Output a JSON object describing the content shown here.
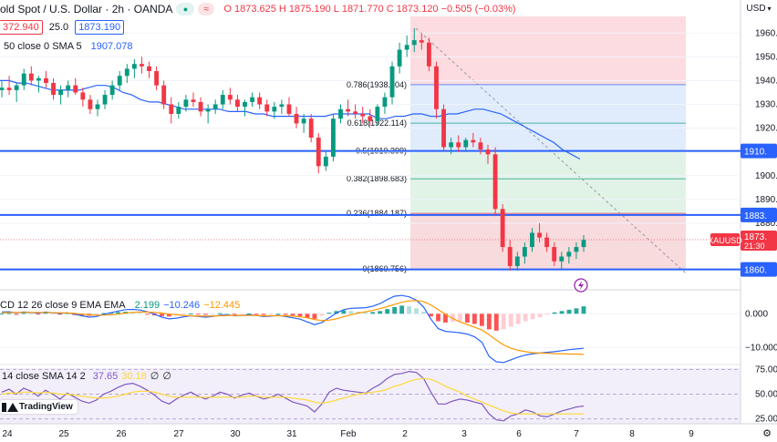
{
  "header": {
    "symbol": "old Spot / U.S. Dollar · 2h · OANDA",
    "ohlc": {
      "o_label": "O",
      "o": "1873.625",
      "h_label": "H",
      "h": "1875.190",
      "l_label": "L",
      "l": "1871.770",
      "c_label": "C",
      "c": "1873.120",
      "change": "−0.505 (−0.03%)"
    },
    "sell_price": "372.940",
    "spread": "25.0",
    "buy_price": "1873.190",
    "sma_label": "50 close 0 SMA 5",
    "sma_value": "1907.078",
    "currency": "USD"
  },
  "macd_legend": {
    "label": "CD 12 26 close 9 EMA EMA",
    "v1": "2.199",
    "v2": "−10.246",
    "v3": "−12.445"
  },
  "rsi_legend": {
    "label": "14 close SMA 14 2",
    "v1": "37.65",
    "v2": "30.18",
    "v3": "∅",
    "v4": "∅"
  },
  "brand": {
    "logo_text": "TradingView"
  },
  "colors": {
    "up": "#089981",
    "down": "#f23645",
    "level": "#2962ff",
    "sma": "#2962ff",
    "macd": "#2962ff",
    "signal": "#ff9800",
    "rsi": "#7e57c2",
    "rsi_ma": "#fdd835"
  },
  "chart_data": {
    "type": "candlestick",
    "price_axis": {
      "ylim": [
        1857,
        1967
      ],
      "ticks": [
        1960,
        1950,
        1940,
        1930,
        1920,
        1910,
        1900,
        1890,
        1880
      ],
      "tick_labels": [
        "1960.000",
        "1950.000",
        "1940.000",
        "1930.000",
        "1920.000",
        "1910.000",
        "1900.000",
        "1890.000",
        "1880.000"
      ]
    },
    "x_axis": {
      "tick_labels": [
        "24",
        "25",
        "26",
        "27",
        "30",
        "31",
        "Feb",
        "2",
        "3",
        "6",
        "7",
        "8",
        "9"
      ]
    },
    "candles": [
      [
        1936,
        1940,
        1933,
        1937
      ],
      [
        1937,
        1942,
        1934,
        1936
      ],
      [
        1936,
        1939,
        1931,
        1938
      ],
      [
        1938,
        1945,
        1936,
        1943
      ],
      [
        1943,
        1946,
        1938,
        1940
      ],
      [
        1940,
        1942,
        1935,
        1941
      ],
      [
        1941,
        1944,
        1937,
        1939
      ],
      [
        1939,
        1941,
        1932,
        1934
      ],
      [
        1934,
        1938,
        1930,
        1936
      ],
      [
        1936,
        1940,
        1933,
        1938
      ],
      [
        1938,
        1941,
        1934,
        1935
      ],
      [
        1935,
        1937,
        1929,
        1932
      ],
      [
        1932,
        1934,
        1926,
        1928
      ],
      [
        1928,
        1932,
        1925,
        1930
      ],
      [
        1930,
        1936,
        1928,
        1934
      ],
      [
        1934,
        1940,
        1932,
        1938
      ],
      [
        1938,
        1944,
        1936,
        1942
      ],
      [
        1942,
        1947,
        1939,
        1945
      ],
      [
        1945,
        1949,
        1941,
        1947
      ],
      [
        1947,
        1950,
        1943,
        1946
      ],
      [
        1946,
        1948,
        1941,
        1944
      ],
      [
        1944,
        1946,
        1936,
        1938
      ],
      [
        1938,
        1940,
        1928,
        1930
      ],
      [
        1930,
        1933,
        1922,
        1926
      ],
      [
        1926,
        1931,
        1924,
        1929
      ],
      [
        1929,
        1934,
        1927,
        1932
      ],
      [
        1932,
        1935,
        1929,
        1931
      ],
      [
        1931,
        1933,
        1925,
        1927
      ],
      [
        1927,
        1930,
        1922,
        1928
      ],
      [
        1928,
        1932,
        1926,
        1930
      ],
      [
        1930,
        1936,
        1928,
        1934
      ],
      [
        1934,
        1937,
        1930,
        1932
      ],
      [
        1932,
        1934,
        1927,
        1929
      ],
      [
        1929,
        1932,
        1925,
        1931
      ],
      [
        1931,
        1935,
        1929,
        1933
      ],
      [
        1933,
        1935,
        1928,
        1930
      ],
      [
        1930,
        1932,
        1925,
        1927
      ],
      [
        1927,
        1931,
        1924,
        1929
      ],
      [
        1929,
        1932,
        1926,
        1930
      ],
      [
        1930,
        1933,
        1925,
        1926
      ],
      [
        1926,
        1929,
        1920,
        1922
      ],
      [
        1922,
        1926,
        1918,
        1924
      ],
      [
        1924,
        1926,
        1914,
        1916
      ],
      [
        1916,
        1918,
        1901,
        1904
      ],
      [
        1904,
        1910,
        1902,
        1908
      ],
      [
        1908,
        1926,
        1906,
        1924
      ],
      [
        1924,
        1930,
        1922,
        1928
      ],
      [
        1928,
        1932,
        1925,
        1927
      ],
      [
        1927,
        1930,
        1924,
        1926
      ],
      [
        1926,
        1929,
        1922,
        1925
      ],
      [
        1925,
        1928,
        1921,
        1923
      ],
      [
        1923,
        1930,
        1921,
        1929
      ],
      [
        1929,
        1935,
        1926,
        1933
      ],
      [
        1933,
        1948,
        1930,
        1946
      ],
      [
        1946,
        1956,
        1943,
        1953
      ],
      [
        1953,
        1959,
        1950,
        1955
      ],
      [
        1955,
        1962,
        1952,
        1957
      ],
      [
        1957,
        1960,
        1953,
        1956
      ],
      [
        1956,
        1958,
        1944,
        1946
      ],
      [
        1946,
        1948,
        1924,
        1928
      ],
      [
        1928,
        1930,
        1910,
        1912
      ],
      [
        1912,
        1916,
        1909,
        1914
      ],
      [
        1914,
        1917,
        1910,
        1912
      ],
      [
        1912,
        1916,
        1910,
        1915
      ],
      [
        1915,
        1918,
        1912,
        1914
      ],
      [
        1914,
        1916,
        1909,
        1911
      ],
      [
        1911,
        1913,
        1905,
        1909
      ],
      [
        1909,
        1912,
        1883,
        1886
      ],
      [
        1886,
        1888,
        1868,
        1870
      ],
      [
        1870,
        1873,
        1860,
        1862
      ],
      [
        1862,
        1868,
        1860,
        1866
      ],
      [
        1866,
        1872,
        1863,
        1870
      ],
      [
        1870,
        1878,
        1868,
        1876
      ],
      [
        1876,
        1880,
        1872,
        1874
      ],
      [
        1874,
        1876,
        1868,
        1870
      ],
      [
        1870,
        1872,
        1862,
        1864
      ],
      [
        1864,
        1868,
        1861,
        1866
      ],
      [
        1866,
        1870,
        1863,
        1868
      ],
      [
        1868,
        1872,
        1865,
        1870
      ],
      [
        1870,
        1875,
        1868,
        1873
      ]
    ],
    "sma_series": [
      1940,
      1940,
      1939,
      1939,
      1938,
      1937,
      1936,
      1936,
      1936,
      1936,
      1937,
      1938,
      1938,
      1937,
      1935,
      1934,
      1932,
      1931,
      1931,
      1930,
      1929,
      1928,
      1928,
      1928,
      1928,
      1928,
      1927,
      1927,
      1927,
      1926,
      1926,
      1925,
      1925,
      1925,
      1925,
      1925,
      1925,
      1925,
      1926,
      1926,
      1926,
      1926,
      1926,
      1924,
      1924,
      1925,
      1925,
      1926,
      1926,
      1925,
      1925,
      1926,
      1926,
      1927,
      1928,
      1928,
      1927,
      1926,
      1924,
      1922,
      1920,
      1918,
      1916,
      1914,
      1911,
      1909,
      1907
    ],
    "fib_levels": [
      {
        "label": "0.786(1938.304)",
        "value": 1938.304
      },
      {
        "label": "0.618(1922.114)",
        "value": 1922.114
      },
      {
        "label": "0.5(1910.399)",
        "value": 1910.399
      },
      {
        "label": "0.382(1898.683)",
        "value": 1898.683
      },
      {
        "label": "0.236(1884.187)",
        "value": 1884.187
      },
      {
        "label": "0(1860.756)",
        "value": 1860.756
      }
    ],
    "fib_top": 1967,
    "horizontal_levels": [
      {
        "value": 1910.4,
        "label": "1910."
      },
      {
        "value": 1883.5,
        "label": "1883."
      },
      {
        "value": 1860.6,
        "label": "1860."
      }
    ],
    "current_price": {
      "value": 1873.12,
      "label": "1873.",
      "symbol": "XAUUSD",
      "countdown": "21:30"
    },
    "macd_axis": {
      "ylim": [
        -15,
        6
      ],
      "ticks": [
        0,
        -10
      ],
      "tick_labels": [
        "0.000",
        "−10.000"
      ]
    },
    "macd_hist": [
      0.1,
      0.2,
      -0.3,
      0.2,
      0.1,
      -0.2,
      0.3,
      0.2,
      -0.1,
      0.2,
      -0.4,
      -0.5,
      -0.6,
      -0.3,
      0.2,
      0.4,
      0.5,
      0.6,
      0.4,
      0.2,
      -0.2,
      -0.5,
      -0.7,
      -0.8,
      -0.4,
      -0.2,
      0.1,
      -0.2,
      -0.3,
      -0.1,
      0.2,
      0.1,
      -0.2,
      -0.1,
      0.1,
      -0.2,
      -0.3,
      -0.2,
      0,
      -0.3,
      -0.5,
      -0.7,
      -1.2,
      -1.5,
      -0.6,
      0.3,
      0.8,
      1,
      0.8,
      0.6,
      0.4,
      0.5,
      0.8,
      1.4,
      2,
      2.4,
      2.2,
      1.6,
      0.6,
      -0.8,
      -2.2,
      -2.6,
      -2.4,
      -2.2,
      -2.6,
      -3,
      -3.6,
      -4.6,
      -5,
      -4.6,
      -3.8,
      -3,
      -2.2,
      -1.6,
      -1,
      -0.2,
      0.4,
      0.8,
      1.2,
      1.6,
      2.2
    ],
    "macd_line": [
      0.5,
      0.6,
      0.3,
      0.5,
      0.4,
      0.2,
      0.5,
      0.3,
      0.1,
      0.3,
      -0.1,
      -0.6,
      -1,
      -0.8,
      -0.2,
      0.3,
      0.8,
      1.2,
      1.3,
      1.1,
      0.6,
      -0.1,
      -1,
      -1.5,
      -1.3,
      -0.9,
      -0.6,
      -0.8,
      -1,
      -0.8,
      -0.4,
      -0.3,
      -0.6,
      -0.5,
      -0.3,
      -0.5,
      -0.8,
      -0.7,
      -0.5,
      -0.8,
      -1.2,
      -1.6,
      -2.4,
      -3.2,
      -2.6,
      -1.2,
      0.2,
      1.2,
      1.6,
      1.7,
      1.8,
      2.2,
      3,
      4.2,
      5.2,
      5.4,
      5,
      4,
      2,
      -1.6,
      -4.4,
      -5.2,
      -5.4,
      -5.6,
      -6,
      -6.8,
      -8.4,
      -12.6,
      -14.2,
      -14.4,
      -13.6,
      -12.8,
      -12.2,
      -11.8,
      -11.6,
      -11.4,
      -11.2,
      -10.9,
      -10.6,
      -10.4,
      -10.2
    ],
    "signal_line": [
      0.3,
      0.4,
      0.4,
      0.4,
      0.4,
      0.4,
      0.4,
      0.3,
      0.3,
      0.2,
      0.1,
      -0.1,
      -0.3,
      -0.4,
      -0.4,
      -0.3,
      -0.1,
      0.2,
      0.4,
      0.5,
      0.5,
      0.4,
      0.2,
      -0.1,
      -0.3,
      -0.5,
      -0.6,
      -0.7,
      -0.7,
      -0.7,
      -0.6,
      -0.5,
      -0.5,
      -0.5,
      -0.5,
      -0.5,
      -0.6,
      -0.6,
      -0.6,
      -0.6,
      -0.7,
      -0.9,
      -1.2,
      -1.7,
      -2,
      -1.9,
      -1.5,
      -0.9,
      -0.3,
      0.2,
      0.6,
      1,
      1.5,
      2.1,
      2.8,
      3.4,
      3.8,
      3.9,
      3.6,
      2.6,
      1.2,
      -0.2,
      -1.4,
      -2.4,
      -3.2,
      -4,
      -4.8,
      -6.2,
      -7.8,
      -9.2,
      -10.2,
      -10.8,
      -11.2,
      -11.5,
      -11.6,
      -11.7,
      -11.8,
      -11.8,
      -11.9,
      -11.9,
      -12
    ],
    "rsi_axis": {
      "ylim": [
        20,
        80
      ],
      "ticks": [
        75,
        50,
        25
      ],
      "tick_labels": [
        "75.00",
        "50.00",
        "25.00"
      ]
    },
    "rsi_series": [
      52,
      55,
      50,
      56,
      53,
      48,
      54,
      50,
      45,
      51,
      47,
      43,
      41,
      44,
      50,
      53,
      57,
      60,
      61,
      58,
      54,
      49,
      43,
      40,
      45,
      49,
      52,
      48,
      45,
      48,
      52,
      50,
      46,
      49,
      51,
      48,
      45,
      47,
      50,
      46,
      42,
      40,
      38,
      32,
      40,
      52,
      56,
      54,
      53,
      52,
      51,
      56,
      60,
      66,
      70,
      71,
      73,
      72,
      66,
      52,
      40,
      40,
      43,
      45,
      44,
      42,
      40,
      30,
      24,
      23,
      28,
      30,
      34,
      32,
      28,
      27,
      30,
      33,
      35,
      37,
      38
    ],
    "rsi_ma_series": [
      50,
      51,
      51,
      52,
      52,
      51,
      52,
      51,
      50,
      50,
      49,
      48,
      47,
      46,
      46,
      47,
      48,
      50,
      52,
      53,
      53,
      52,
      50,
      48,
      47,
      47,
      47,
      47,
      47,
      47,
      47,
      47,
      47,
      47,
      48,
      48,
      47,
      47,
      47,
      47,
      46,
      45,
      44,
      42,
      41,
      42,
      44,
      46,
      48,
      50,
      51,
      52,
      53,
      55,
      58,
      60,
      63,
      65,
      66,
      65,
      62,
      58,
      55,
      52,
      48,
      45,
      42,
      39,
      36,
      33,
      31,
      30,
      30,
      30,
      30,
      30,
      30,
      30,
      30,
      30,
      30
    ]
  }
}
